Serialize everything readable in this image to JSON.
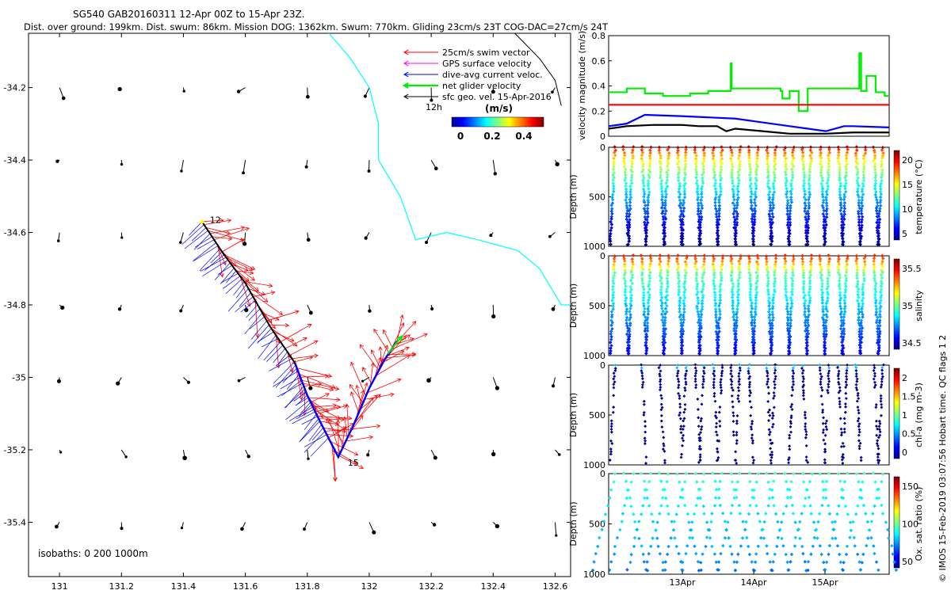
{
  "header": {
    "title": "SG540 GAB20160311 12-Apr 00Z to 15-Apr 23Z.",
    "subtitle": "Dist. over ground: 199km. Dist. swum: 86km. Mission DOG: 1362km. Swum: 770km. Gliding 23cm/s 23T COG-DAC=27cm/s 24T"
  },
  "credit": "© IMOS 15-Feb-2019 03:07:56 Hobart time. QC flags 1  2",
  "colors": {
    "swim": "#ff0000",
    "gps": "#ff00ff",
    "dac": "#0000ff",
    "net": "#00ee00",
    "geo": "#000000",
    "coast": "#00ffff"
  },
  "chart_data": [
    {
      "type": "map",
      "xlim": [
        130.9,
        132.65
      ],
      "ylim": [
        -35.55,
        -34.05
      ],
      "xticks": [
        131,
        131.2,
        131.4,
        131.6,
        131.8,
        132,
        132.2,
        132.4,
        132.6
      ],
      "yticks": [
        -34.2,
        -34.4,
        -34.6,
        -34.8,
        -35,
        -35.2,
        -35.4
      ],
      "legend": {
        "entries": [
          {
            "label": "25cm/s swim vector",
            "color": "#ff0000"
          },
          {
            "label": "GPS surface velocity",
            "color": "#ff00ff"
          },
          {
            "label": "dive-avg current veloc.",
            "color": "#0000ff"
          },
          {
            "label": "net glider velocity",
            "color": "#00ee00"
          },
          {
            "label": "sfc geo. vel. 15-Apr-2016",
            "color": "#000000"
          }
        ],
        "extra_label": "12h",
        "colorbar_title": "(m/s)",
        "colorbar_ticks": [
          "0",
          "0.2",
          "0.4"
        ]
      },
      "isobaths_label": "isobaths: 0   200  1000m",
      "track": [
        [
          131.46,
          -34.57
        ],
        [
          131.53,
          -34.66
        ],
        [
          131.6,
          -34.74
        ],
        [
          131.68,
          -34.86
        ],
        [
          131.76,
          -34.96
        ],
        [
          131.8,
          -35.05
        ],
        [
          131.84,
          -35.12
        ],
        [
          131.9,
          -35.22
        ],
        [
          131.95,
          -35.13
        ],
        [
          132.0,
          -35.03
        ],
        [
          132.05,
          -34.95
        ],
        [
          132.09,
          -34.9
        ]
      ],
      "track_labels": [
        {
          "text": "12",
          "lon": 131.47,
          "lat": -34.565
        },
        {
          "text": "15",
          "lon": 131.915,
          "lat": -35.235
        }
      ],
      "coastline": [
        [
          131.87,
          -34.05
        ],
        [
          131.94,
          -34.12
        ],
        [
          132.0,
          -34.2
        ],
        [
          132.03,
          -34.3
        ],
        [
          132.03,
          -34.4
        ],
        [
          132.1,
          -34.5
        ],
        [
          132.15,
          -34.62
        ],
        [
          132.25,
          -34.6
        ],
        [
          132.35,
          -34.62
        ],
        [
          132.48,
          -34.65
        ],
        [
          132.55,
          -34.7
        ],
        [
          132.62,
          -34.8
        ],
        [
          132.65,
          -34.8
        ]
      ],
      "contour": [
        [
          132.47,
          -34.05
        ],
        [
          132.55,
          -34.12
        ],
        [
          132.6,
          -34.18
        ],
        [
          132.62,
          -34.25
        ]
      ]
    },
    {
      "type": "line",
      "ylabel": "velocity magnitude (m/s)",
      "ylim": [
        0,
        0.8
      ],
      "yticks": [
        0,
        0.2,
        0.4,
        0.6,
        0.8
      ],
      "series": [
        {
          "color": "#00ee00",
          "x": [
            0,
            2,
            2,
            4,
            4,
            6,
            6,
            9,
            9,
            11,
            11,
            13.5,
            13.5,
            13.6,
            13.6,
            16,
            16,
            19,
            19,
            19.2,
            19.2,
            20,
            20,
            21,
            21,
            22,
            22,
            27.7,
            27.7,
            27.9,
            27.9,
            28.5,
            28.5,
            29.5,
            29.5,
            30.5,
            30.5,
            31
          ],
          "values": [
            0.35,
            0.35,
            0.38,
            0.38,
            0.34,
            0.34,
            0.32,
            0.32,
            0.34,
            0.34,
            0.36,
            0.36,
            0.58,
            0.58,
            0.38,
            0.38,
            0.38,
            0.38,
            0.36,
            0.36,
            0.3,
            0.3,
            0.36,
            0.36,
            0.2,
            0.2,
            0.38,
            0.38,
            0.66,
            0.66,
            0.36,
            0.36,
            0.48,
            0.48,
            0.35,
            0.35,
            0.32,
            0.32
          ]
        },
        {
          "color": "#ff0000",
          "x": [
            0,
            31
          ],
          "values": [
            0.25,
            0.25
          ]
        },
        {
          "color": "#0000ff",
          "x": [
            0,
            2,
            4,
            8,
            11,
            14,
            17,
            20,
            24,
            26,
            27,
            31
          ],
          "values": [
            0.08,
            0.1,
            0.17,
            0.16,
            0.15,
            0.14,
            0.11,
            0.08,
            0.04,
            0.08,
            0.08,
            0.07
          ]
        },
        {
          "color": "#000000",
          "x": [
            0,
            2,
            5,
            8,
            10,
            12,
            13,
            14,
            17,
            20,
            24,
            27,
            31
          ],
          "values": [
            0.06,
            0.08,
            0.09,
            0.09,
            0.08,
            0.08,
            0.04,
            0.06,
            0.04,
            0.02,
            0.02,
            0.03,
            0.03
          ]
        }
      ]
    },
    {
      "type": "scatter",
      "ylabel": "Depth (m)",
      "colorbar_label": "temperature (°C)",
      "colorbar_ticks": [
        "20",
        "15",
        "10",
        "5"
      ],
      "yticks": [
        0,
        500,
        1000
      ],
      "ylim": [
        1000,
        0
      ],
      "dives": 31
    },
    {
      "type": "scatter",
      "ylabel": "Depth (m)",
      "colorbar_label": "salinity",
      "colorbar_ticks": [
        "35.5",
        "35",
        "34.5"
      ],
      "yticks": [
        0,
        500,
        1000
      ],
      "ylim": [
        1000,
        0
      ],
      "dives": 31
    },
    {
      "type": "scatter",
      "ylabel": "Depth (m)",
      "colorbar_label": "chl-a (mg m-3)",
      "colorbar_ticks": [
        "2",
        "1.5",
        "1",
        "0.5",
        "0"
      ],
      "yticks": [
        0,
        500,
        1000
      ],
      "ylim": [
        1000,
        0
      ]
    },
    {
      "type": "scatter",
      "ylabel": "Depth (m)",
      "colorbar_label": "Ox. sat. ratio (%)",
      "colorbar_ticks": [
        "150",
        "100",
        "50"
      ],
      "yticks": [
        0,
        500,
        1000
      ],
      "ylim": [
        1000,
        0
      ],
      "xticks": [
        "13Apr",
        "14Apr",
        "15Apr"
      ]
    }
  ]
}
